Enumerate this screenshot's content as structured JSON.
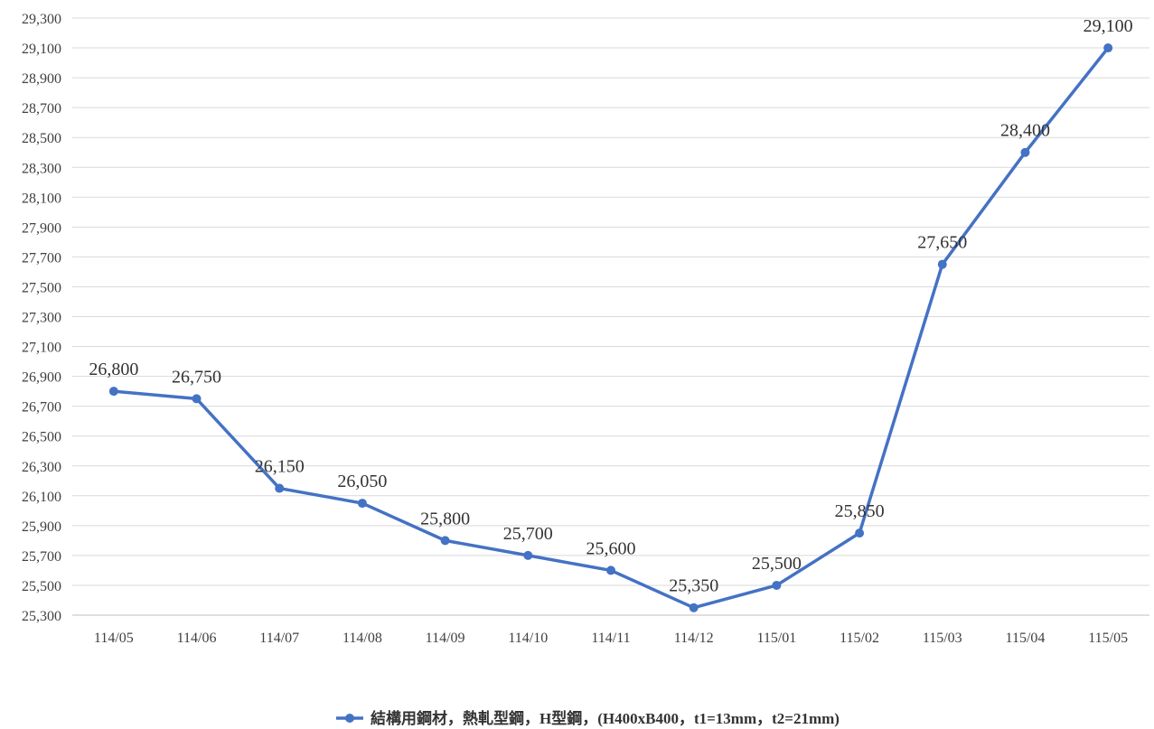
{
  "chart_data": {
    "type": "line",
    "title": "",
    "xlabel": "",
    "ylabel": "",
    "categories": [
      "114/05",
      "114/06",
      "114/07",
      "114/08",
      "114/09",
      "114/10",
      "114/11",
      "114/12",
      "115/01",
      "115/02",
      "115/03",
      "115/04",
      "115/05"
    ],
    "series": [
      {
        "name": "結構用鋼材，熱軋型鋼，H型鋼，(H400xB400，t1=13mm，t2=21mm)",
        "values": [
          26800,
          26750,
          26150,
          26050,
          25800,
          25700,
          25600,
          25350,
          25500,
          25850,
          27650,
          28400,
          29100
        ],
        "labels": [
          "26,800",
          "26,750",
          "26,150",
          "26,050",
          "25,800",
          "25,700",
          "25,600",
          "25,350",
          "25,500",
          "25,850",
          "27,650",
          "28,400",
          "29,100"
        ],
        "color": "#4472C4"
      }
    ],
    "ylim": [
      25300,
      29300
    ],
    "yticks": [
      "25,300",
      "25,500",
      "25,700",
      "25,900",
      "26,100",
      "26,300",
      "26,500",
      "26,700",
      "26,900",
      "27,100",
      "27,300",
      "27,500",
      "27,700",
      "27,900",
      "28,100",
      "28,300",
      "28,500",
      "28,700",
      "28,900",
      "29,100",
      "29,300"
    ],
    "grid": "horizontal",
    "legend_position": "bottom",
    "gridline_color": "#D9D9D9",
    "axis_color": "#BFBFBF"
  }
}
